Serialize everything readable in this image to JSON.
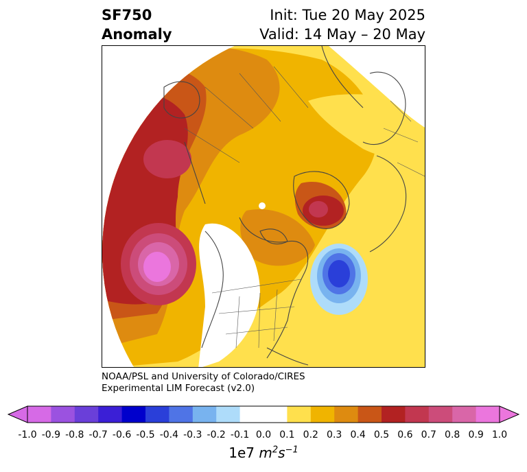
{
  "header": {
    "title_line1": "SF750",
    "title_line2": "Anomaly",
    "init_label": "Init: Tue 20 May 2025",
    "valid_label": "Valid: 14 May – 20 May"
  },
  "credit": {
    "line1": "NOAA/PSL and University of Colorado/CIRES",
    "line2": "Experimental LIM Forecast (v2.0)"
  },
  "colorbar": {
    "levels": [
      "-1.0",
      "-0.9",
      "-0.8",
      "-0.7",
      "-0.6",
      "-0.5",
      "-0.4",
      "-0.3",
      "-0.2",
      "-0.1",
      "0.0",
      "0.1",
      "0.2",
      "0.3",
      "0.4",
      "0.5",
      "0.6",
      "0.7",
      "0.8",
      "0.9",
      "1.0"
    ],
    "colors": [
      "#d66ae6",
      "#9b52e0",
      "#6a3fd9",
      "#3b1fd6",
      "#0000cc",
      "#2a3fd9",
      "#4f74e6",
      "#78b3ef",
      "#aedcfa",
      "#ffffff",
      "#ffffff",
      "#ffe04d",
      "#f0b400",
      "#de8b10",
      "#c95617",
      "#b22222",
      "#c23750",
      "#cc4c7a",
      "#d966a8",
      "#eb76dd"
    ],
    "units_base": "1e7",
    "units_m": "m",
    "units_m_exp": "2",
    "units_s": "s",
    "units_s_exp": "−1"
  },
  "map_colors": {
    "land_outline": "#444444"
  }
}
